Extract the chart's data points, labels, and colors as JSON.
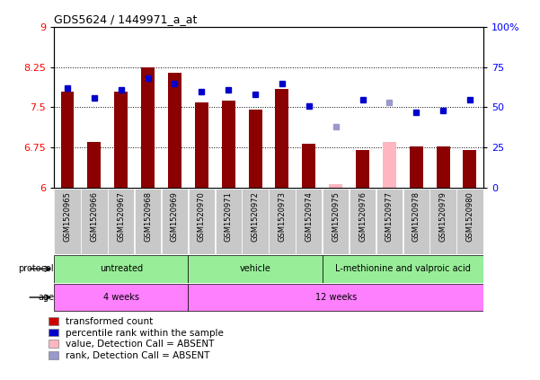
{
  "title": "GDS5624 / 1449971_a_at",
  "samples": [
    "GSM1520965",
    "GSM1520966",
    "GSM1520967",
    "GSM1520968",
    "GSM1520969",
    "GSM1520970",
    "GSM1520971",
    "GSM1520972",
    "GSM1520973",
    "GSM1520974",
    "GSM1520975",
    "GSM1520976",
    "GSM1520977",
    "GSM1520978",
    "GSM1520979",
    "GSM1520980"
  ],
  "red_values": [
    7.8,
    6.85,
    7.8,
    8.25,
    8.15,
    7.6,
    7.62,
    7.45,
    7.85,
    6.82,
    null,
    6.7,
    null,
    6.78,
    6.78,
    6.7
  ],
  "pink_values": [
    null,
    null,
    null,
    null,
    null,
    null,
    null,
    null,
    null,
    null,
    6.08,
    null,
    6.85,
    null,
    null,
    null
  ],
  "blue_values": [
    62,
    56,
    61,
    68,
    65,
    60,
    61,
    58,
    65,
    51,
    null,
    55,
    null,
    47,
    48,
    55
  ],
  "light_blue_values": [
    null,
    null,
    null,
    null,
    null,
    null,
    null,
    null,
    null,
    null,
    38,
    null,
    53,
    null,
    null,
    null
  ],
  "ylim_left": [
    6,
    9
  ],
  "ylim_right": [
    0,
    100
  ],
  "yticks_left": [
    6,
    6.75,
    7.5,
    8.25,
    9
  ],
  "yticks_right": [
    0,
    25,
    50,
    75,
    100
  ],
  "ytick_labels_left": [
    "6",
    "6.75",
    "7.5",
    "8.25",
    "9"
  ],
  "ytick_labels_right": [
    "0",
    "25",
    "50",
    "75",
    "100%"
  ],
  "hlines": [
    6.75,
    7.5,
    8.25
  ],
  "protocol_labels": [
    "untreated",
    "vehicle",
    "L-methionine and valproic acid"
  ],
  "protocol_ranges": [
    [
      0,
      5
    ],
    [
      5,
      10
    ],
    [
      10,
      16
    ]
  ],
  "protocol_color": "#98EE98",
  "age_labels": [
    "4 weeks",
    "12 weeks"
  ],
  "age_ranges": [
    [
      0,
      5
    ],
    [
      5,
      16
    ]
  ],
  "age_color": "#FF80FF",
  "bar_width": 0.5,
  "base_value": 6.0,
  "bar_color": "#8B0000",
  "pink_color": "#FFB6C1",
  "blue_color": "#0000CC",
  "light_blue_color": "#9999CC",
  "xtick_bg": "#C8C8C8",
  "legend_items": [
    {
      "label": "transformed count",
      "color": "#CC0000"
    },
    {
      "label": "percentile rank within the sample",
      "color": "#0000CC"
    },
    {
      "label": "value, Detection Call = ABSENT",
      "color": "#FFB6C1"
    },
    {
      "label": "rank, Detection Call = ABSENT",
      "color": "#9999CC"
    }
  ]
}
